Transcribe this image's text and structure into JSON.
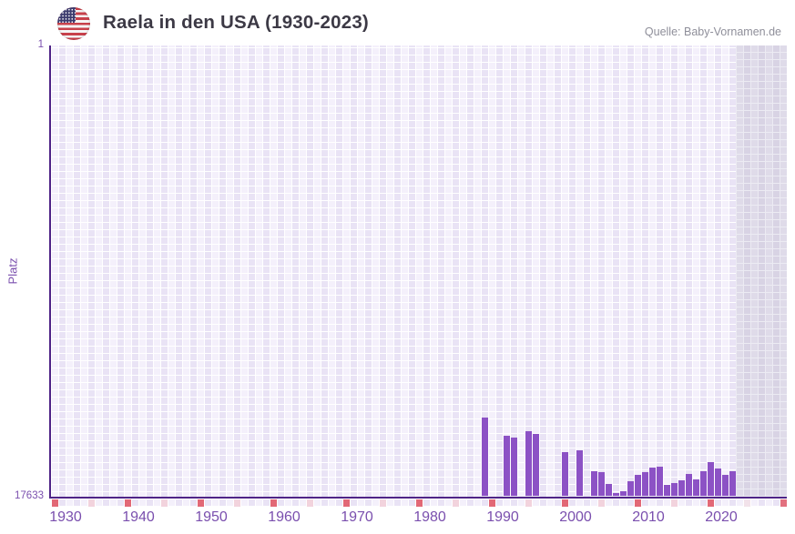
{
  "header": {
    "title": "Raela in den USA (1930-2023)",
    "source": "Quelle: Baby-Vornamen.de",
    "flag_icon": "us-flag-circle"
  },
  "chart_data": {
    "type": "bar",
    "title": "Raela in den USA (1930-2023)",
    "ylabel": "Platz",
    "y_axis": {
      "top_tick": "1",
      "bottom_tick": "17633",
      "min": 1,
      "max": 17633,
      "inverted": true,
      "grid": "checkered"
    },
    "x_axis": {
      "range_start": 1930,
      "range_end": 2023,
      "display_end": 2030,
      "tick_labels": [
        "1930",
        "1940",
        "1950",
        "1960",
        "1970",
        "1980",
        "1990",
        "2000",
        "2010",
        "2020"
      ]
    },
    "bars": [
      {
        "year": 1989,
        "platz": 14550
      },
      {
        "year": 1992,
        "platz": 15260
      },
      {
        "year": 1993,
        "platz": 15340
      },
      {
        "year": 1995,
        "platz": 15090
      },
      {
        "year": 1996,
        "platz": 15190
      },
      {
        "year": 2000,
        "platz": 15900
      },
      {
        "year": 2002,
        "platz": 15830
      },
      {
        "year": 2004,
        "platz": 16650
      },
      {
        "year": 2005,
        "platz": 16690
      },
      {
        "year": 2006,
        "platz": 17150
      },
      {
        "year": 2007,
        "platz": 17510
      },
      {
        "year": 2008,
        "platz": 17430
      },
      {
        "year": 2009,
        "platz": 17040
      },
      {
        "year": 2010,
        "platz": 16790
      },
      {
        "year": 2011,
        "platz": 16690
      },
      {
        "year": 2012,
        "platz": 16510
      },
      {
        "year": 2013,
        "platz": 16470
      },
      {
        "year": 2014,
        "platz": 17190
      },
      {
        "year": 2015,
        "platz": 17120
      },
      {
        "year": 2016,
        "platz": 17010
      },
      {
        "year": 2017,
        "platz": 16760
      },
      {
        "year": 2018,
        "platz": 16970
      },
      {
        "year": 2019,
        "platz": 16650
      },
      {
        "year": 2020,
        "platz": 16300
      },
      {
        "year": 2021,
        "platz": 16550
      },
      {
        "year": 2022,
        "platz": 16790
      },
      {
        "year": 2023,
        "platz": 16650
      }
    ],
    "x_ticks": {
      "decade_years": [
        1930,
        1940,
        1950,
        1960,
        1970,
        1980,
        1990,
        2000,
        2010,
        2020,
        2030
      ],
      "half_decade_years": [
        1935,
        1945,
        1955,
        1965,
        1975,
        1985,
        1995,
        2005,
        2015,
        2025
      ]
    },
    "colors": {
      "bar": "#8c52c5",
      "axis_line": "#4f2487",
      "decade_tick": "#e26876",
      "half_decade_tick": "#f2d3dd",
      "grid_cell_light": "#f4f0fb",
      "grid_cell_dark": "#e9e3f5",
      "offrange_cell_light": "#dfdbe9",
      "offrange_cell_dark": "#d8d3e4",
      "axis_label": "#7a4fae",
      "title": "#3c3945",
      "source": "#8f8f9a"
    },
    "legend": "none"
  }
}
